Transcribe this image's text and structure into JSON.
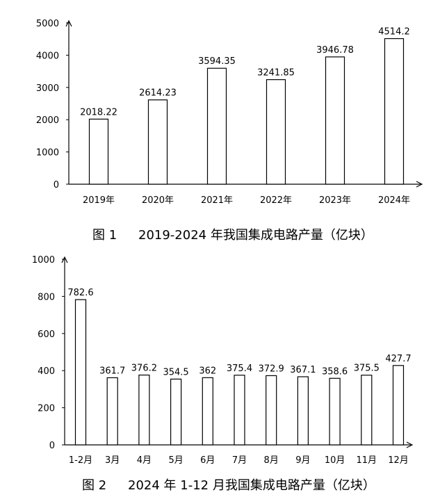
{
  "charts": [
    {
      "type": "bar",
      "caption_label": "图 1",
      "caption_title": "2019-2024 年我国集成电路产量（亿块）",
      "categories": [
        "2019年",
        "2020年",
        "2021年",
        "2022年",
        "2023年",
        "2024年"
      ],
      "values": [
        2018.22,
        2614.23,
        3594.35,
        3241.85,
        3946.78,
        4514.2
      ],
      "value_labels": [
        "2018.22",
        "2614.23",
        "3594.35",
        "3241.85",
        "3946.78",
        "4514.2"
      ],
      "ylim": [
        0,
        5000
      ],
      "yticks": [
        "0",
        "1000",
        "2000",
        "3000",
        "4000",
        "5000"
      ],
      "grid": false,
      "bar_fill": "#ffffff",
      "bar_stroke": "#000000"
    },
    {
      "type": "bar",
      "caption_label": "图 2",
      "caption_title": "2024 年 1-12 月我国集成电路产量（亿块）",
      "categories": [
        "1-2月",
        "3月",
        "4月",
        "5月",
        "6月",
        "7月",
        "8月",
        "9月",
        "10月",
        "11月",
        "12月"
      ],
      "values": [
        782.6,
        361.7,
        376.2,
        354.5,
        362,
        375.4,
        372.9,
        367.1,
        358.6,
        375.5,
        427.7
      ],
      "value_labels": [
        "782.6",
        "361.7",
        "376.2",
        "354.5",
        "362",
        "375.4",
        "372.9",
        "367.1",
        "358.6",
        "375.5",
        "427.7"
      ],
      "ylim": [
        0,
        1000
      ],
      "yticks": [
        "0",
        "200",
        "400",
        "600",
        "800",
        "1000"
      ],
      "grid": false,
      "bar_fill": "#ffffff",
      "bar_stroke": "#000000"
    }
  ]
}
